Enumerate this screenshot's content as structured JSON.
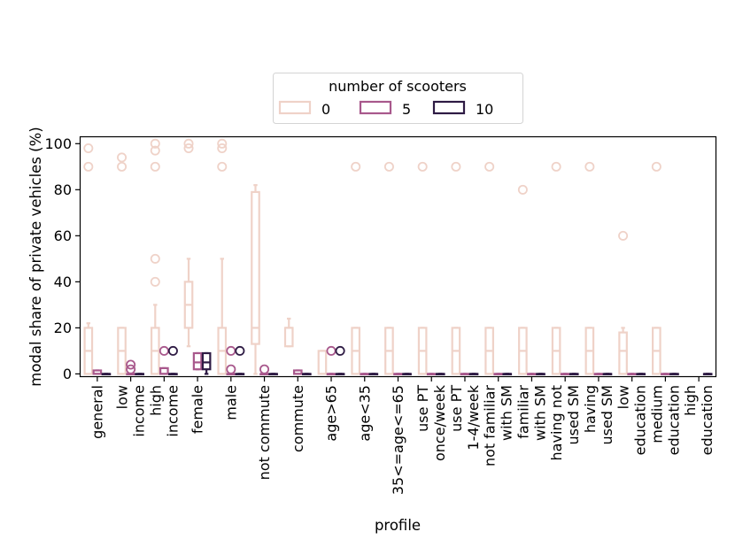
{
  "chart_data": {
    "type": "box",
    "xlabel": "profile",
    "ylabel": "modal share of private vehicles (%)",
    "ylim": [
      -1,
      103
    ],
    "yticks": [
      0,
      20,
      40,
      60,
      80,
      100
    ],
    "ytick_labels": [
      "0",
      "20",
      "40",
      "60",
      "80",
      "100"
    ],
    "categories": [
      "general",
      "low\nincome",
      "high\nincome",
      "female",
      "male",
      "not commute",
      "commute",
      "age>65",
      "age<35",
      "35<=age<=65",
      "use PT\nonce/week",
      "use PT\n1-4/week",
      "not familiar\nwith SM",
      "familiar\nwith SM",
      "having not\nused SM",
      "having\nused SM",
      "low\neducation",
      "medium\neducation",
      "high\neducation"
    ],
    "legend": {
      "title": "number of scooters",
      "position": "upper center",
      "entries": [
        {
          "label": "0",
          "color": "#efd2c8"
        },
        {
          "label": "5",
          "color": "#a8588c"
        },
        {
          "label": "10",
          "color": "#2e1b44"
        }
      ]
    },
    "series": [
      {
        "name": "0",
        "color": "#efd2c8",
        "boxes": [
          {
            "category": "general",
            "q1": 0,
            "median": 10,
            "q3": 20,
            "whisker_low": 0,
            "whisker_high": 22,
            "outliers": [
              90,
              98
            ]
          },
          {
            "category": "low\nincome",
            "q1": 0,
            "median": 10,
            "q3": 20,
            "whisker_low": 0,
            "whisker_high": 20,
            "outliers": [
              90,
              94
            ]
          },
          {
            "category": "high\nincome",
            "q1": 0,
            "median": 10,
            "q3": 20,
            "whisker_low": 0,
            "whisker_high": 30,
            "outliers": [
              40,
              50,
              90,
              97,
              100
            ]
          },
          {
            "category": "female",
            "q1": 20,
            "median": 30,
            "q3": 40,
            "whisker_low": 12,
            "whisker_high": 50,
            "outliers": [
              98,
              100
            ]
          },
          {
            "category": "male",
            "q1": 0,
            "median": 10,
            "q3": 20,
            "whisker_low": 0,
            "whisker_high": 50,
            "outliers": [
              90,
              98,
              100
            ]
          },
          {
            "category": "not commute",
            "q1": 13,
            "median": 20,
            "q3": 79,
            "whisker_low": 0,
            "whisker_high": 82,
            "outliers": []
          },
          {
            "category": "commute",
            "q1": 12,
            "median": 20,
            "q3": 20,
            "whisker_low": 12,
            "whisker_high": 24,
            "outliers": []
          },
          {
            "category": "age>65",
            "q1": 0,
            "median": 0,
            "q3": 10,
            "whisker_low": 0,
            "whisker_high": 10,
            "outliers": []
          },
          {
            "category": "age<35",
            "q1": 0,
            "median": 10,
            "q3": 20,
            "whisker_low": 0,
            "whisker_high": 20,
            "outliers": [
              90
            ]
          },
          {
            "category": "35<=age<=65",
            "q1": 0,
            "median": 10,
            "q3": 20,
            "whisker_low": 0,
            "whisker_high": 20,
            "outliers": [
              90
            ]
          },
          {
            "category": "use PT\nonce/week",
            "q1": 0,
            "median": 10,
            "q3": 20,
            "whisker_low": 0,
            "whisker_high": 20,
            "outliers": [
              90
            ]
          },
          {
            "category": "use PT\n1-4/week",
            "q1": 0,
            "median": 10,
            "q3": 20,
            "whisker_low": 0,
            "whisker_high": 20,
            "outliers": [
              90
            ]
          },
          {
            "category": "not familiar\nwith SM",
            "q1": 0,
            "median": 10,
            "q3": 20,
            "whisker_low": 0,
            "whisker_high": 20,
            "outliers": [
              90
            ]
          },
          {
            "category": "familiar\nwith SM",
            "q1": 0,
            "median": 10,
            "q3": 20,
            "whisker_low": 0,
            "whisker_high": 20,
            "outliers": [
              80
            ]
          },
          {
            "category": "having not\nused SM",
            "q1": 0,
            "median": 10,
            "q3": 20,
            "whisker_low": 0,
            "whisker_high": 20,
            "outliers": [
              90
            ]
          },
          {
            "category": "having\nused SM",
            "q1": 0,
            "median": 10,
            "q3": 20,
            "whisker_low": 0,
            "whisker_high": 20,
            "outliers": [
              90
            ]
          },
          {
            "category": "low\neducation",
            "q1": 0,
            "median": 10,
            "q3": 18,
            "whisker_low": 0,
            "whisker_high": 20,
            "outliers": [
              60
            ]
          },
          {
            "category": "medium\neducation",
            "q1": 0,
            "median": 10,
            "q3": 20,
            "whisker_low": 0,
            "whisker_high": 20,
            "outliers": [
              90
            ]
          },
          {
            "category": "high\neducation",
            "q1": null,
            "median": null,
            "q3": null,
            "whisker_low": null,
            "whisker_high": null,
            "outliers": []
          }
        ]
      },
      {
        "name": "5",
        "color": "#a8588c",
        "boxes": [
          {
            "category": "general",
            "q1": 0,
            "median": 0,
            "q3": 1.5,
            "whisker_low": 0,
            "whisker_high": 1.5,
            "outliers": []
          },
          {
            "category": "low\nincome",
            "q1": 0,
            "median": 0,
            "q3": 0,
            "whisker_low": 0,
            "whisker_high": 0,
            "outliers": [
              2,
              4
            ]
          },
          {
            "category": "high\nincome",
            "q1": 0,
            "median": 0,
            "q3": 2.5,
            "whisker_low": 0,
            "whisker_high": 2.5,
            "outliers": [
              10
            ]
          },
          {
            "category": "female",
            "q1": 2,
            "median": 5,
            "q3": 9,
            "whisker_low": 2,
            "whisker_high": 9,
            "outliers": []
          },
          {
            "category": "male",
            "q1": 0,
            "median": 0,
            "q3": 0,
            "whisker_low": 0,
            "whisker_high": 0,
            "outliers": [
              2,
              10
            ]
          },
          {
            "category": "not commute",
            "q1": 0,
            "median": 0,
            "q3": 0,
            "whisker_low": 0,
            "whisker_high": 0,
            "outliers": [
              2
            ]
          },
          {
            "category": "commute",
            "q1": 0,
            "median": 0,
            "q3": 1.5,
            "whisker_low": 0,
            "whisker_high": 1.5,
            "outliers": []
          },
          {
            "category": "age>65",
            "q1": 0,
            "median": 0,
            "q3": 0,
            "whisker_low": 0,
            "whisker_high": 0,
            "outliers": [
              10
            ]
          },
          {
            "category": "age<35",
            "q1": 0,
            "median": 0,
            "q3": 0,
            "whisker_low": 0,
            "whisker_high": 0,
            "outliers": []
          },
          {
            "category": "35<=age<=65",
            "q1": 0,
            "median": 0,
            "q3": 0,
            "whisker_low": 0,
            "whisker_high": 0,
            "outliers": []
          },
          {
            "category": "use PT\nonce/week",
            "q1": 0,
            "median": 0,
            "q3": 0,
            "whisker_low": 0,
            "whisker_high": 0,
            "outliers": []
          },
          {
            "category": "use PT\n1-4/week",
            "q1": 0,
            "median": 0,
            "q3": 0,
            "whisker_low": 0,
            "whisker_high": 0,
            "outliers": []
          },
          {
            "category": "not familiar\nwith SM",
            "q1": 0,
            "median": 0,
            "q3": 0,
            "whisker_low": 0,
            "whisker_high": 0,
            "outliers": []
          },
          {
            "category": "familiar\nwith SM",
            "q1": 0,
            "median": 0,
            "q3": 0,
            "whisker_low": 0,
            "whisker_high": 0,
            "outliers": []
          },
          {
            "category": "having not\nused SM",
            "q1": 0,
            "median": 0,
            "q3": 0,
            "whisker_low": 0,
            "whisker_high": 0,
            "outliers": []
          },
          {
            "category": "having\nused SM",
            "q1": 0,
            "median": 0,
            "q3": 0,
            "whisker_low": 0,
            "whisker_high": 0,
            "outliers": []
          },
          {
            "category": "low\neducation",
            "q1": 0,
            "median": 0,
            "q3": 0,
            "whisker_low": 0,
            "whisker_high": 0,
            "outliers": []
          },
          {
            "category": "medium\neducation",
            "q1": 0,
            "median": 0,
            "q3": 0,
            "whisker_low": 0,
            "whisker_high": 0,
            "outliers": []
          },
          {
            "category": "high\neducation",
            "q1": null,
            "median": null,
            "q3": null,
            "whisker_low": null,
            "whisker_high": null,
            "outliers": []
          }
        ]
      },
      {
        "name": "10",
        "color": "#2e1b44",
        "boxes": [
          {
            "category": "general",
            "q1": 0,
            "median": 0,
            "q3": 0,
            "whisker_low": 0,
            "whisker_high": 0,
            "outliers": []
          },
          {
            "category": "low\nincome",
            "q1": 0,
            "median": 0,
            "q3": 0,
            "whisker_low": 0,
            "whisker_high": 0,
            "outliers": []
          },
          {
            "category": "high\nincome",
            "q1": 0,
            "median": 0,
            "q3": 0,
            "whisker_low": 0,
            "whisker_high": 0,
            "outliers": [
              10
            ]
          },
          {
            "category": "female",
            "q1": 2,
            "median": 5,
            "q3": 9,
            "whisker_low": 0,
            "whisker_high": 9,
            "outliers": []
          },
          {
            "category": "male",
            "q1": 0,
            "median": 0,
            "q3": 0,
            "whisker_low": 0,
            "whisker_high": 0,
            "outliers": [
              10
            ]
          },
          {
            "category": "not commute",
            "q1": 0,
            "median": 0,
            "q3": 0,
            "whisker_low": 0,
            "whisker_high": 0,
            "outliers": []
          },
          {
            "category": "commute",
            "q1": 0,
            "median": 0,
            "q3": 0,
            "whisker_low": 0,
            "whisker_high": 0,
            "outliers": []
          },
          {
            "category": "age>65",
            "q1": 0,
            "median": 0,
            "q3": 0,
            "whisker_low": 0,
            "whisker_high": 0,
            "outliers": [
              10
            ]
          },
          {
            "category": "age<35",
            "q1": 0,
            "median": 0,
            "q3": 0,
            "whisker_low": 0,
            "whisker_high": 0,
            "outliers": []
          },
          {
            "category": "35<=age<=65",
            "q1": 0,
            "median": 0,
            "q3": 0,
            "whisker_low": 0,
            "whisker_high": 0,
            "outliers": []
          },
          {
            "category": "use PT\nonce/week",
            "q1": 0,
            "median": 0,
            "q3": 0,
            "whisker_low": 0,
            "whisker_high": 0,
            "outliers": []
          },
          {
            "category": "use PT\n1-4/week",
            "q1": 0,
            "median": 0,
            "q3": 0,
            "whisker_low": 0,
            "whisker_high": 0,
            "outliers": []
          },
          {
            "category": "not familiar\nwith SM",
            "q1": 0,
            "median": 0,
            "q3": 0,
            "whisker_low": 0,
            "whisker_high": 0,
            "outliers": []
          },
          {
            "category": "familiar\nwith SM",
            "q1": 0,
            "median": 0,
            "q3": 0,
            "whisker_low": 0,
            "whisker_high": 0,
            "outliers": []
          },
          {
            "category": "having not\nused SM",
            "q1": 0,
            "median": 0,
            "q3": 0,
            "whisker_low": 0,
            "whisker_high": 0,
            "outliers": []
          },
          {
            "category": "having\nused SM",
            "q1": 0,
            "median": 0,
            "q3": 0,
            "whisker_low": 0,
            "whisker_high": 0,
            "outliers": []
          },
          {
            "category": "low\neducation",
            "q1": 0,
            "median": 0,
            "q3": 0,
            "whisker_low": 0,
            "whisker_high": 0,
            "outliers": []
          },
          {
            "category": "medium\neducation",
            "q1": 0,
            "median": 0,
            "q3": 0,
            "whisker_low": 0,
            "whisker_high": 0,
            "outliers": []
          },
          {
            "category": "high\neducation",
            "q1": 0,
            "median": 0,
            "q3": 0,
            "whisker_low": 0,
            "whisker_high": 0,
            "outliers": []
          }
        ]
      }
    ]
  }
}
